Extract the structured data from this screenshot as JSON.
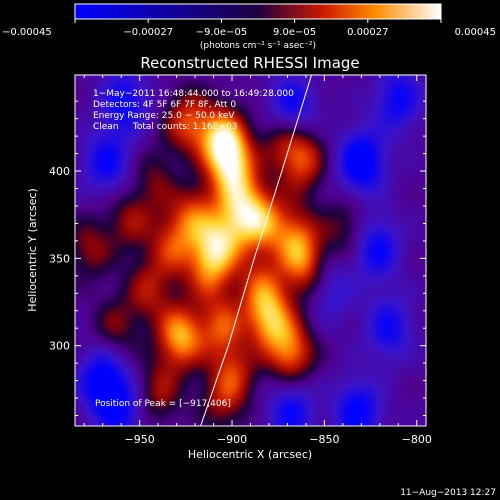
{
  "chart_data": {
    "type": "heatmap",
    "title": "Reconstructed RHESSI Image",
    "xlabel": "Heliocentric X (arcsec)",
    "ylabel": "Heliocentric Y (arcsec)",
    "xlim": [
      -985,
      -795
    ],
    "ylim": [
      254,
      455
    ],
    "x_ticks": [
      -950,
      -900,
      -850,
      -800
    ],
    "x_tick_labels": [
      "−950",
      "−900",
      "−850",
      "−800"
    ],
    "y_ticks": [
      300,
      350,
      400
    ],
    "y_tick_labels": [
      "300",
      "350",
      "400"
    ],
    "colorbar": {
      "min": -0.00045,
      "max": 0.00045,
      "ticks": [
        -0.00045,
        -0.00027,
        -9e-05,
        9e-05,
        0.00027,
        0.00045
      ],
      "tick_labels": [
        "−0.00045",
        "−0.00027",
        "−9.0e−05",
        "9.0e−05",
        "0.00027",
        "0.00045"
      ],
      "unit_label": "(photons cm⁻² s⁻¹ asec⁻²)"
    },
    "annotations": [
      "1−May−2011 16:48:44.000 to 16:49:28.000",
      "Detectors: 4F 5F 6F 7F 8F, Att 0",
      "Energy Range: 25.0 − 50.0 keV",
      "Clean     Total counts: 1.16E+03"
    ],
    "peak_label": "Position of Peak = [−917,406]",
    "peak_position": [
      -917,
      406
    ],
    "limb_curve": [
      [
        -917,
        254
      ],
      [
        -902,
        300
      ],
      [
        -888,
        350
      ],
      [
        -873,
        400
      ],
      [
        -857,
        455
      ]
    ],
    "sources": [
      {
        "x": -905,
        "y": 418,
        "v": 0.00045
      },
      {
        "x": -900,
        "y": 402,
        "v": 0.00036
      },
      {
        "x": -924,
        "y": 428,
        "v": 0.0003
      },
      {
        "x": -862,
        "y": 406,
        "v": 0.0003
      },
      {
        "x": -872,
        "y": 420,
        "v": 0.00022
      },
      {
        "x": -940,
        "y": 395,
        "v": 0.00018
      },
      {
        "x": -955,
        "y": 372,
        "v": 0.0002
      },
      {
        "x": -922,
        "y": 378,
        "v": 0.0003
      },
      {
        "x": -895,
        "y": 382,
        "v": 0.00024
      },
      {
        "x": -884,
        "y": 372,
        "v": 0.00034
      },
      {
        "x": -866,
        "y": 362,
        "v": 0.0003
      },
      {
        "x": -932,
        "y": 357,
        "v": 0.00026
      },
      {
        "x": -910,
        "y": 358,
        "v": 0.00028
      },
      {
        "x": -900,
        "y": 365,
        "v": 0.0002
      },
      {
        "x": -838,
        "y": 367,
        "v": 0.00018
      },
      {
        "x": -945,
        "y": 332,
        "v": 0.00022
      },
      {
        "x": -912,
        "y": 342,
        "v": 0.00026
      },
      {
        "x": -885,
        "y": 336,
        "v": 0.00022
      },
      {
        "x": -860,
        "y": 344,
        "v": 0.00028
      },
      {
        "x": -928,
        "y": 305,
        "v": 0.00042
      },
      {
        "x": -905,
        "y": 310,
        "v": 0.0003
      },
      {
        "x": -880,
        "y": 316,
        "v": 0.0004
      },
      {
        "x": -868,
        "y": 296,
        "v": 0.00036
      },
      {
        "x": -898,
        "y": 287,
        "v": 0.00028
      },
      {
        "x": -940,
        "y": 273,
        "v": 0.00022
      },
      {
        "x": -905,
        "y": 268,
        "v": 0.0002
      },
      {
        "x": -963,
        "y": 310,
        "v": 0.00018
      },
      {
        "x": -977,
        "y": 356,
        "v": 0.0002
      },
      {
        "x": -970,
        "y": 280,
        "v": -0.00038
      },
      {
        "x": -968,
        "y": 405,
        "v": -0.0003
      },
      {
        "x": -830,
        "y": 405,
        "v": -0.00042
      },
      {
        "x": -822,
        "y": 356,
        "v": -0.00032
      },
      {
        "x": -815,
        "y": 310,
        "v": -0.00028
      },
      {
        "x": -832,
        "y": 262,
        "v": -0.00035
      },
      {
        "x": -958,
        "y": 440,
        "v": -0.0003
      },
      {
        "x": -868,
        "y": 436,
        "v": -0.00035
      },
      {
        "x": -847,
        "y": 332,
        "v": -0.0002
      },
      {
        "x": -868,
        "y": 262,
        "v": -0.0003
      },
      {
        "x": -810,
        "y": 441,
        "v": -0.0003
      },
      {
        "x": -960,
        "y": 262,
        "v": -0.00028
      },
      {
        "x": -927,
        "y": 390,
        "v": -0.0001
      },
      {
        "x": -897,
        "y": 296,
        "v": -0.0001
      }
    ]
  },
  "footer": {
    "date": "11−Aug−2013 12:27"
  }
}
